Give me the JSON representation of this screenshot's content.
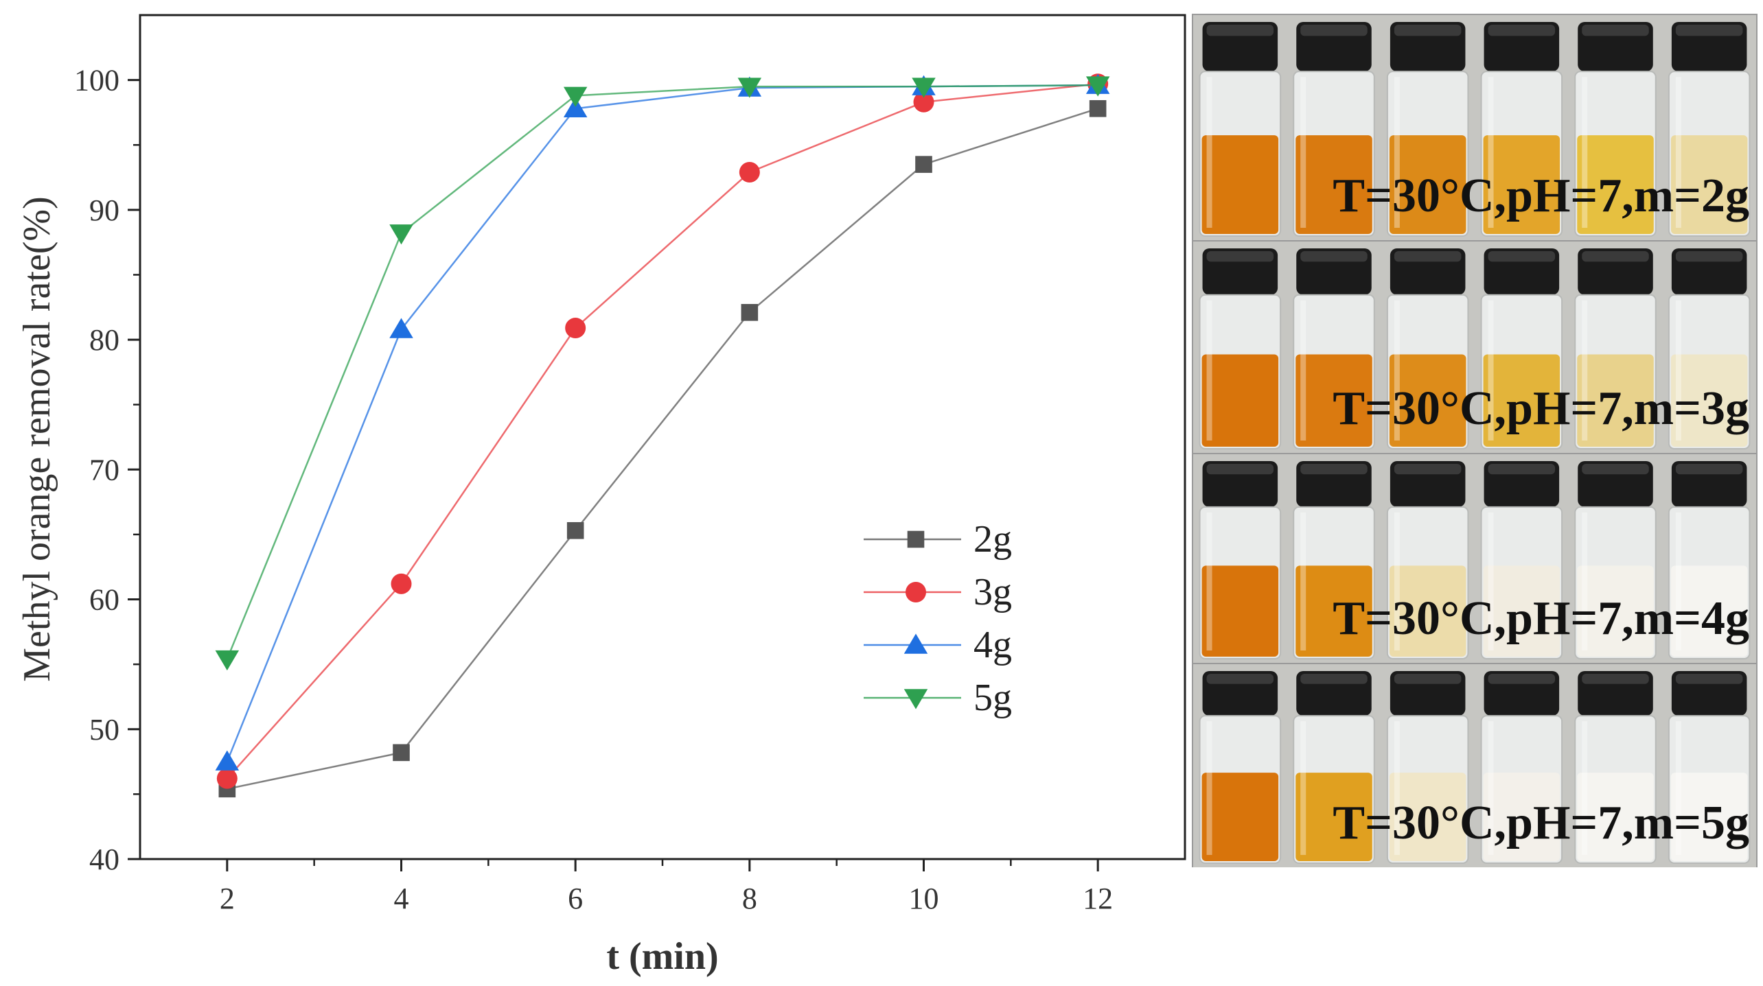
{
  "chart_data": {
    "type": "line",
    "xlabel": "t (min)",
    "ylabel": "Methyl orange removal rate(%)",
    "x": [
      2,
      4,
      6,
      8,
      10,
      12
    ],
    "xlim": [
      1,
      13
    ],
    "ylim": [
      40,
      105
    ],
    "xticks": [
      2,
      4,
      6,
      8,
      10,
      12
    ],
    "yticks": [
      40,
      50,
      60,
      70,
      80,
      90,
      100
    ],
    "grid": false,
    "legend_position": "center-right",
    "series": [
      {
        "name": "2g",
        "color": "#555555",
        "marker": "square",
        "values": [
          45.4,
          48.2,
          65.3,
          82.1,
          93.5,
          97.8
        ]
      },
      {
        "name": "3g",
        "color": "#e8383d",
        "marker": "circle",
        "values": [
          46.2,
          61.2,
          80.9,
          92.9,
          98.3,
          99.7
        ]
      },
      {
        "name": "4g",
        "color": "#1f6fe0",
        "marker": "triangle-up",
        "values": [
          47.5,
          80.8,
          97.8,
          99.4,
          99.5,
          99.6
        ]
      },
      {
        "name": "5g",
        "color": "#2ea050",
        "marker": "triangle-down",
        "values": [
          55.4,
          88.2,
          98.8,
          99.5,
          99.5,
          99.6
        ]
      }
    ]
  },
  "photo_panels": [
    {
      "label": "T=30°C,pH=7,m=2g",
      "liquid_colors": [
        "#d9780c",
        "#d97a10",
        "#dc8a18",
        "#e3a52a",
        "#e6c040",
        "#ead9a0"
      ]
    },
    {
      "label": "T=30°C,pH=7,m=3g",
      "liquid_colors": [
        "#d8740b",
        "#da7a10",
        "#dd8c1a",
        "#e3b43a",
        "#e8d28c",
        "#eee6c8"
      ]
    },
    {
      "label": "T=30°C,pH=7,m=4g",
      "liquid_colors": [
        "#d8740b",
        "#dd8c14",
        "#ecdcaa",
        "#f1ece0",
        "#f3f1ea",
        "#f5f4f0"
      ]
    },
    {
      "label": "T=30°C,pH=7,m=5g",
      "liquid_colors": [
        "#d8740b",
        "#e0a020",
        "#f0e6c8",
        "#f3f0ea",
        "#f5f4f0",
        "#f6f5f2"
      ]
    }
  ]
}
